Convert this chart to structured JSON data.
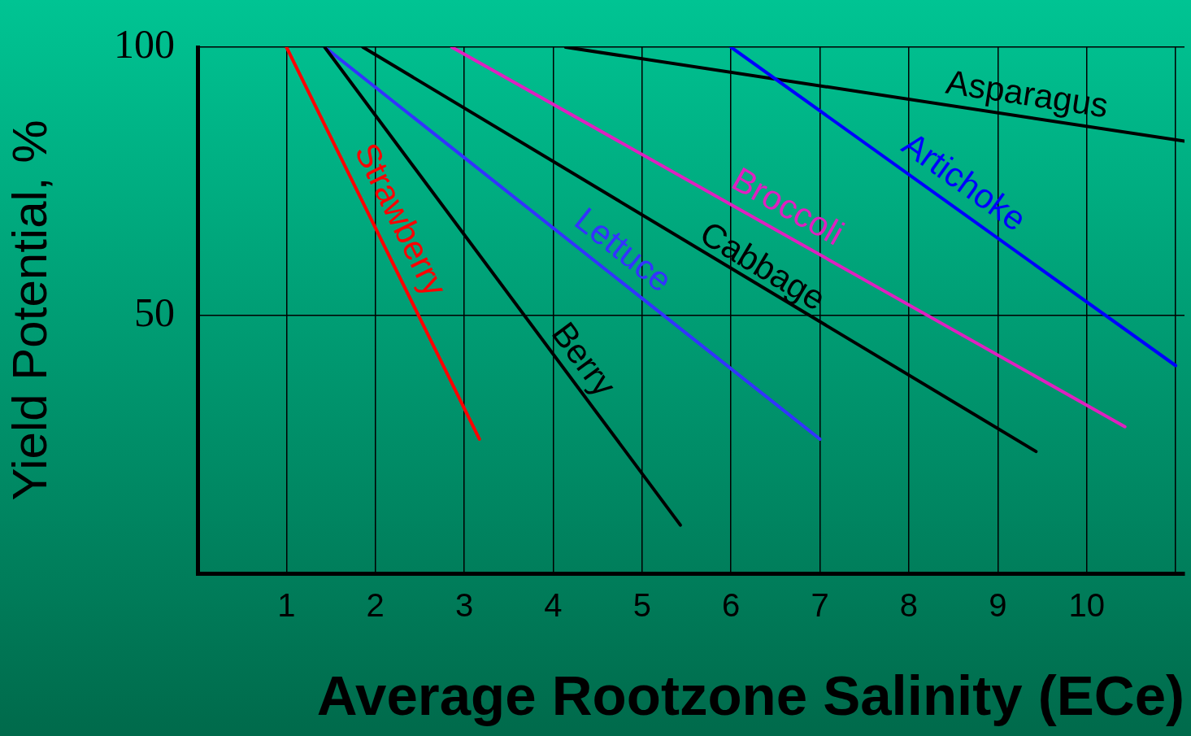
{
  "chart_data": {
    "type": "line",
    "xlabel": "Average Rootzone Salinity (ECe)",
    "ylabel": "Yield Potential, %",
    "xlim": [
      0,
      11.1
    ],
    "ylim": [
      2,
      100
    ],
    "xticks": [
      1,
      2,
      3,
      4,
      5,
      6,
      7,
      8,
      9,
      10,
      {
        "value": 11,
        "label": null
      }
    ],
    "yticks": [
      50,
      100
    ],
    "grid": true,
    "legend": false,
    "marker": "none",
    "line_style": "solid",
    "series": [
      {
        "name": "Strawberry",
        "color": "#ff0000",
        "x": [
          1,
          3.17
        ],
        "values": [
          100,
          27
        ]
      },
      {
        "name": "Berry",
        "color": "#000000",
        "x": [
          1.43,
          5.43
        ],
        "values": [
          100,
          11
        ]
      },
      {
        "name": "Lettuce",
        "color": "#3333ff",
        "x": [
          1.43,
          7
        ],
        "values": [
          100,
          27
        ]
      },
      {
        "name": "Cabbage",
        "color": "#000000",
        "x": [
          1.86,
          9.43
        ],
        "values": [
          100,
          24.7
        ]
      },
      {
        "name": "Broccoli",
        "color": "#e020c0",
        "x": [
          2.86,
          10.43
        ],
        "values": [
          100,
          29.3
        ]
      },
      {
        "name": "Artichoke",
        "color": "#0000ff",
        "x": [
          6,
          11
        ],
        "values": [
          100,
          40.7
        ]
      },
      {
        "name": "Asparagus",
        "color": "#000000",
        "x": [
          4.14,
          11.1
        ],
        "values": [
          100,
          82.5
        ]
      }
    ]
  }
}
